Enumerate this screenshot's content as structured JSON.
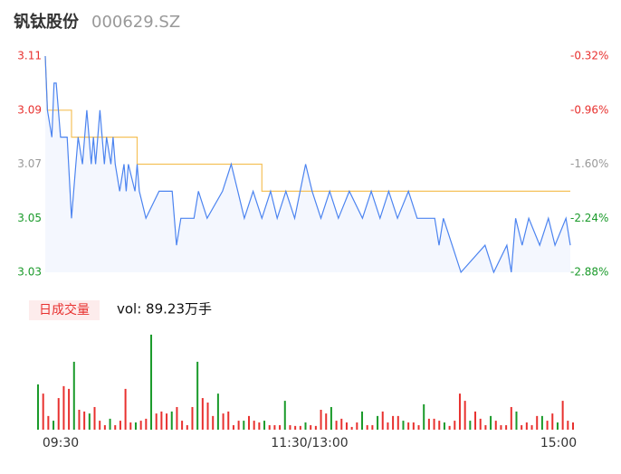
{
  "header": {
    "name": "钒钛股份",
    "code": "000629.SZ"
  },
  "chart_data": [
    {
      "type": "line",
      "series": [
        {
          "name": "price",
          "color": "#4c84f0",
          "x": [
            0,
            1,
            3,
            4,
            5,
            7,
            10,
            12,
            14,
            15,
            17,
            19,
            21,
            22,
            23,
            25,
            27,
            28,
            30,
            31,
            32,
            34,
            36,
            37,
            38,
            41,
            42,
            43,
            46,
            52,
            58,
            60,
            62,
            68,
            70,
            74,
            81,
            85,
            88,
            91,
            95,
            99,
            103,
            106,
            110,
            114,
            119,
            122,
            126,
            130,
            134,
            139,
            145,
            149,
            153,
            157,
            161,
            166,
            170,
            178,
            180,
            182,
            186,
            190,
            201,
            205,
            211,
            213,
            215,
            218,
            221,
            226,
            230,
            233,
            238,
            240
          ],
          "values": [
            3.11,
            3.09,
            3.08,
            3.1,
            3.1,
            3.08,
            3.08,
            3.05,
            3.07,
            3.08,
            3.07,
            3.09,
            3.07,
            3.08,
            3.07,
            3.09,
            3.07,
            3.08,
            3.07,
            3.08,
            3.07,
            3.06,
            3.07,
            3.06,
            3.07,
            3.06,
            3.07,
            3.06,
            3.05,
            3.06,
            3.06,
            3.04,
            3.05,
            3.05,
            3.06,
            3.05,
            3.06,
            3.07,
            3.06,
            3.05,
            3.06,
            3.05,
            3.06,
            3.05,
            3.06,
            3.05,
            3.07,
            3.06,
            3.05,
            3.06,
            3.05,
            3.06,
            3.05,
            3.06,
            3.05,
            3.06,
            3.05,
            3.06,
            3.05,
            3.05,
            3.04,
            3.05,
            3.04,
            3.03,
            3.04,
            3.03,
            3.04,
            3.03,
            3.05,
            3.04,
            3.05,
            3.04,
            3.05,
            3.04,
            3.05,
            3.04
          ]
        },
        {
          "name": "average",
          "color": "#f5c15a",
          "x": [
            0,
            1,
            12,
            12,
            42,
            42,
            99,
            99,
            240
          ],
          "values": [
            3.11,
            3.09,
            3.09,
            3.08,
            3.08,
            3.07,
            3.07,
            3.06,
            3.06
          ]
        }
      ],
      "xlim": [
        0,
        240
      ],
      "ylim": [
        3.03,
        3.11
      ],
      "yticks": [
        3.11,
        3.09,
        3.07,
        3.05,
        3.03
      ],
      "ytick_colors": [
        "#e8312f",
        "#e8312f",
        "#999999",
        "#1a9a2a",
        "#1a9a2a"
      ],
      "y2lim": [
        -2.88,
        -0.32
      ],
      "y2ticks": [
        {
          "value": -0.32,
          "label": "-0.32%"
        },
        {
          "value": -0.96,
          "label": "-0.96%"
        },
        {
          "value": -1.6,
          "label": "-1.60%"
        },
        {
          "value": -2.24,
          "label": "-2.24%"
        },
        {
          "value": -2.88,
          "label": "-2.88%"
        }
      ],
      "y2tick_colors": [
        "#e8312f",
        "#e8312f",
        "#999999",
        "#1a9a2a",
        "#1a9a2a"
      ]
    },
    {
      "type": "bar",
      "title": "日成交量",
      "subtitle": "vol: 89.23万手",
      "values": [
        1.82,
        1.45,
        0.55,
        0.36,
        1.27,
        1.75,
        1.64,
        2.73,
        0.8,
        0.73,
        0.65,
        0.91,
        0.36,
        0.18,
        0.44,
        0.18,
        0.36,
        1.64,
        0.29,
        0.29,
        0.36,
        0.44,
        3.82,
        0.65,
        0.73,
        0.65,
        0.73,
        0.91,
        0.36,
        0.18,
        0.91,
        2.73,
        1.27,
        1.09,
        0.55,
        1.45,
        0.65,
        0.73,
        0.18,
        0.36,
        0.36,
        0.55,
        0.36,
        0.29,
        0.36,
        0.18,
        0.18,
        0.18,
        1.16,
        0.18,
        0.15,
        0.15,
        0.29,
        0.18,
        0.15,
        0.8,
        0.65,
        0.91,
        0.36,
        0.44,
        0.29,
        0.11,
        0.29,
        0.73,
        0.18,
        0.18,
        0.55,
        0.73,
        0.29,
        0.55,
        0.55,
        0.36,
        0.29,
        0.29,
        0.18,
        1.02,
        0.44,
        0.44,
        0.36,
        0.29,
        0.15,
        0.36,
        1.45,
        1.16,
        0.36,
        0.73,
        0.44,
        0.18,
        0.55,
        0.36,
        0.18,
        0.18,
        0.91,
        0.73,
        0.18,
        0.29,
        0.18,
        0.55,
        0.55,
        0.36,
        0.65,
        0.29,
        1.16,
        0.36,
        0.29
      ],
      "colors": [
        "#1a9a2a",
        "#e8312f",
        "#e8312f",
        "#1a9a2a",
        "#e8312f",
        "#e8312f",
        "#e8312f",
        "#1a9a2a",
        "#e8312f",
        "#e8312f",
        "#1a9a2a",
        "#e8312f",
        "#e8312f",
        "#e8312f",
        "#1a9a2a",
        "#e8312f",
        "#e8312f",
        "#e8312f",
        "#e8312f",
        "#1a9a2a",
        "#e8312f",
        "#e8312f",
        "#1a9a2a",
        "#e8312f",
        "#e8312f",
        "#e8312f",
        "#1a9a2a",
        "#e8312f",
        "#e8312f",
        "#e8312f",
        "#e8312f",
        "#1a9a2a",
        "#e8312f",
        "#e8312f",
        "#e8312f",
        "#1a9a2a",
        "#e8312f",
        "#e8312f",
        "#e8312f",
        "#e8312f",
        "#1a9a2a",
        "#e8312f",
        "#e8312f",
        "#e8312f",
        "#1a9a2a",
        "#e8312f",
        "#e8312f",
        "#e8312f",
        "#1a9a2a",
        "#e8312f",
        "#e8312f",
        "#e8312f",
        "#1a9a2a",
        "#e8312f",
        "#e8312f",
        "#e8312f",
        "#e8312f",
        "#1a9a2a",
        "#e8312f",
        "#e8312f",
        "#e8312f",
        "#e8312f",
        "#e8312f",
        "#1a9a2a",
        "#e8312f",
        "#e8312f",
        "#1a9a2a",
        "#e8312f",
        "#e8312f",
        "#e8312f",
        "#e8312f",
        "#1a9a2a",
        "#e8312f",
        "#e8312f",
        "#e8312f",
        "#1a9a2a",
        "#e8312f",
        "#e8312f",
        "#e8312f",
        "#1a9a2a",
        "#e8312f",
        "#e8312f",
        "#e8312f",
        "#e8312f",
        "#1a9a2a",
        "#e8312f",
        "#e8312f",
        "#e8312f",
        "#1a9a2a",
        "#e8312f",
        "#e8312f",
        "#e8312f",
        "#e8312f",
        "#1a9a2a",
        "#e8312f",
        "#e8312f",
        "#e8312f",
        "#e8312f",
        "#1a9a2a",
        "#e8312f",
        "#e8312f",
        "#1a9a2a",
        "#e8312f",
        "#e8312f",
        "#e8312f"
      ],
      "ylim": [
        0,
        4
      ],
      "xlim": [
        0,
        240
      ],
      "xticks": [
        {
          "value": 0,
          "label": "09:30"
        },
        {
          "value": 120,
          "label": "11:30/13:00"
        },
        {
          "value": 240,
          "label": "15:00"
        }
      ]
    }
  ]
}
